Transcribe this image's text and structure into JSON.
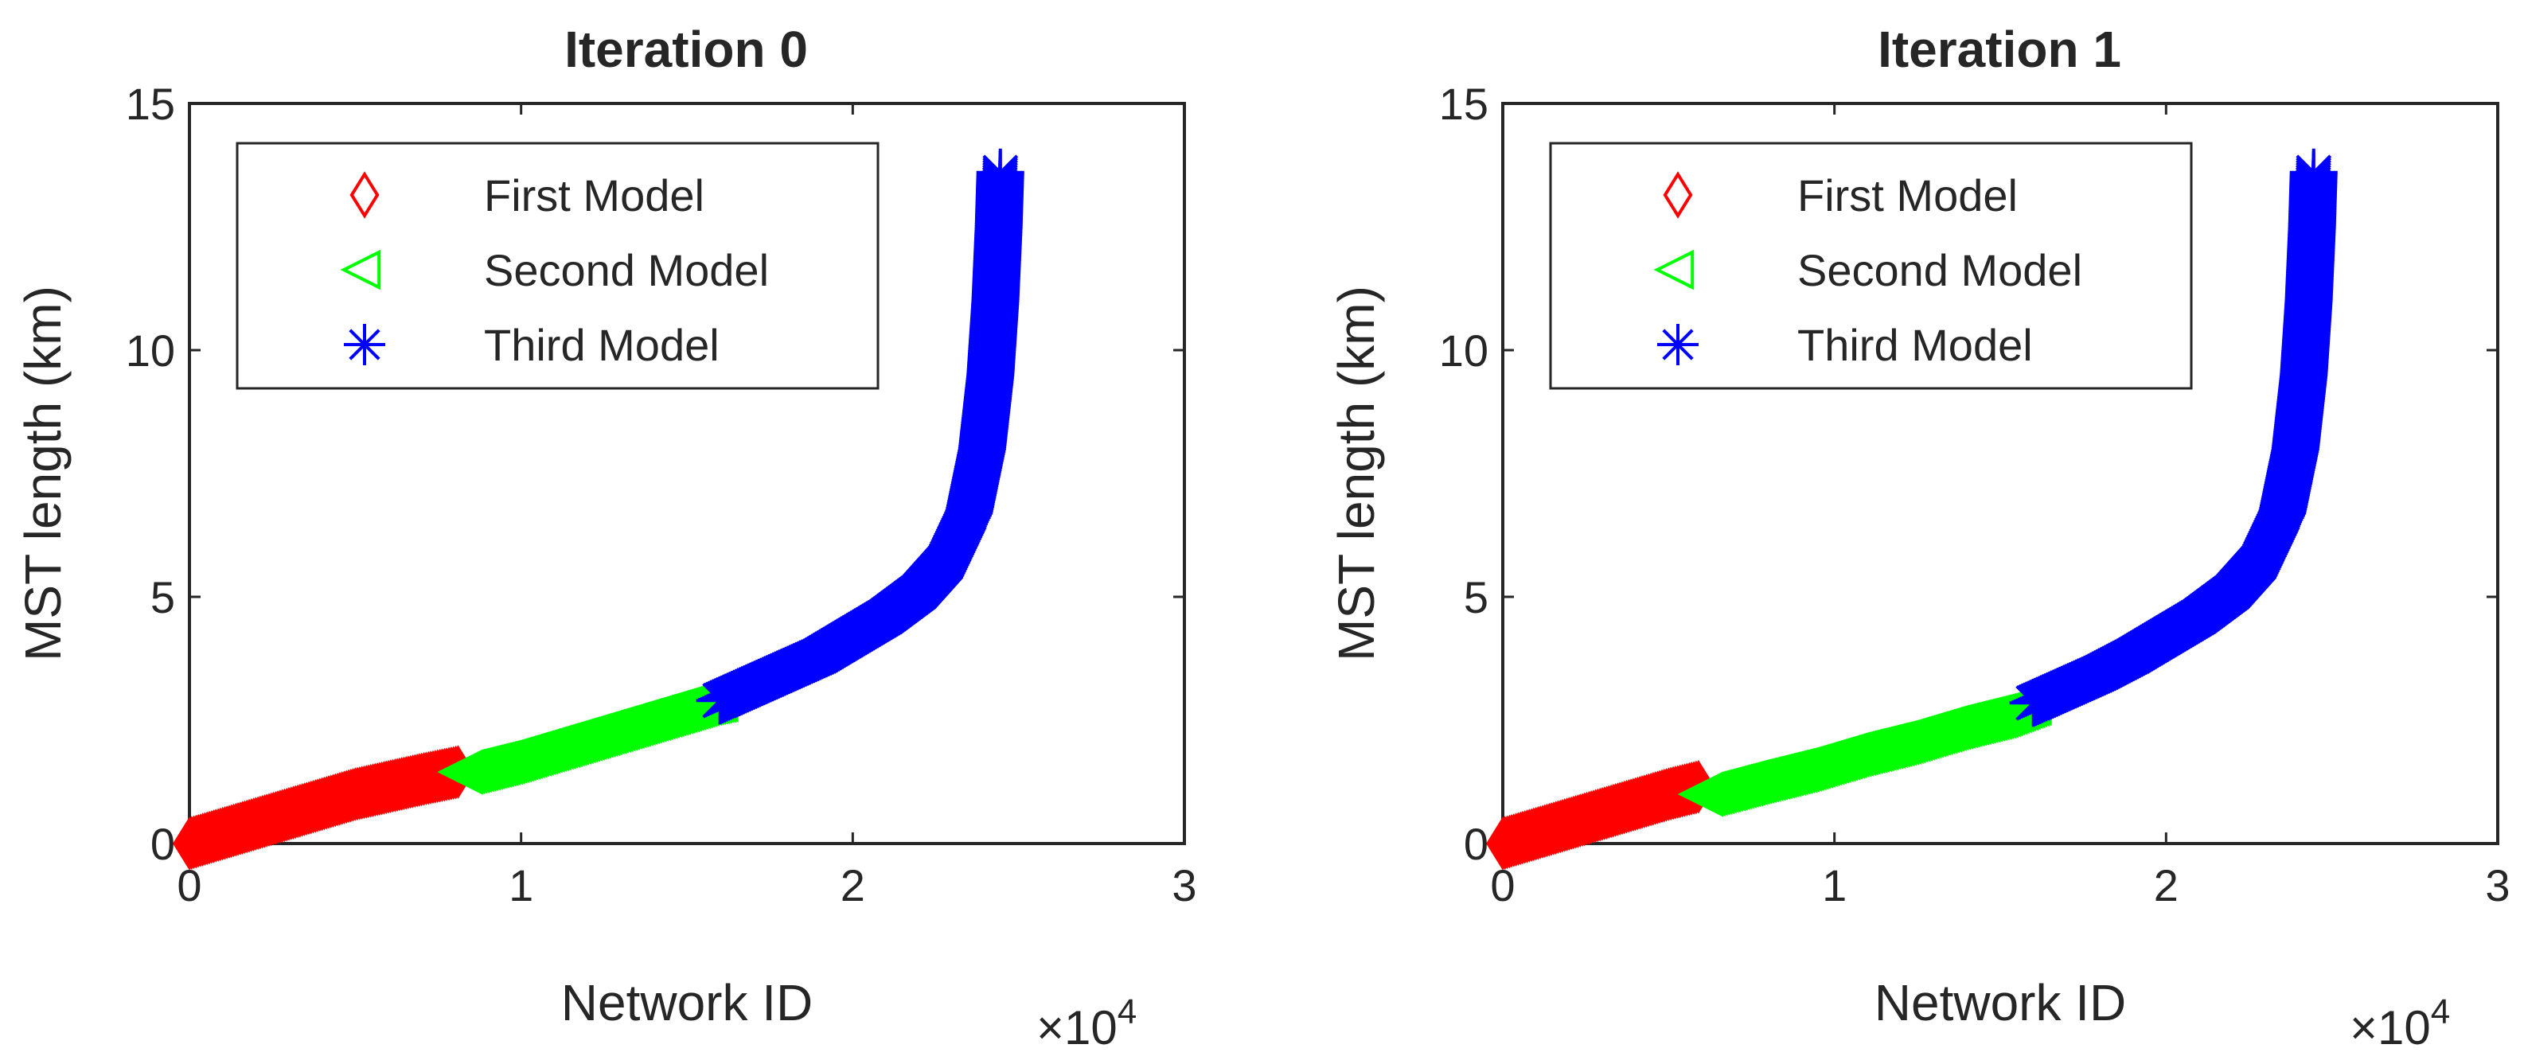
{
  "chart_data": [
    {
      "type": "scatter",
      "title": "Iteration 0",
      "xlabel": "Network ID",
      "ylabel": "MST length (km)",
      "x_multiplier_label": "×10",
      "x_multiplier_exponent": "4",
      "xlim": [
        0,
        30000
      ],
      "ylim": [
        0,
        15
      ],
      "xticks": [
        0,
        1,
        2,
        3
      ],
      "yticks": [
        0,
        5,
        10,
        15
      ],
      "legend": {
        "location": "top-left",
        "entries": [
          "First Model",
          "Second Model",
          "Third Model"
        ]
      },
      "series": [
        {
          "name": "First Model",
          "marker": "diamond",
          "color": "#ff0000",
          "points": [
            [
              0,
              0.0
            ],
            [
              1000,
              0.2
            ],
            [
              2000,
              0.4
            ],
            [
              3000,
              0.6
            ],
            [
              4000,
              0.8
            ],
            [
              5000,
              1.0
            ],
            [
              6000,
              1.15
            ],
            [
              7000,
              1.3
            ],
            [
              8100,
              1.45
            ]
          ]
        },
        {
          "name": "Second Model",
          "marker": "triangle-left",
          "color": "#00ff00",
          "points": [
            [
              8300,
              1.45
            ],
            [
              9500,
              1.65
            ],
            [
              10500,
              1.85
            ],
            [
              11500,
              2.05
            ],
            [
              12500,
              2.25
            ],
            [
              13500,
              2.45
            ],
            [
              14500,
              2.65
            ],
            [
              15500,
              2.85
            ],
            [
              16000,
              2.92
            ]
          ]
        },
        {
          "name": "Third Model",
          "marker": "asterisk",
          "color": "#0000ff",
          "points": [
            [
              16000,
              2.9
            ],
            [
              17000,
              3.2
            ],
            [
              18000,
              3.5
            ],
            [
              19000,
              3.8
            ],
            [
              20000,
              4.2
            ],
            [
              21000,
              4.6
            ],
            [
              22000,
              5.1
            ],
            [
              22800,
              5.7
            ],
            [
              23500,
              6.7
            ],
            [
              23900,
              8.0
            ],
            [
              24150,
              9.5
            ],
            [
              24300,
              11.0
            ],
            [
              24400,
              12.5
            ],
            [
              24450,
              13.6
            ]
          ]
        }
      ]
    },
    {
      "type": "scatter",
      "title": "Iteration 1",
      "xlabel": "Network ID",
      "ylabel": "MST length (km)",
      "x_multiplier_label": "×10",
      "x_multiplier_exponent": "4",
      "xlim": [
        0,
        30000
      ],
      "ylim": [
        0,
        15
      ],
      "xticks": [
        0,
        1,
        2,
        3
      ],
      "yticks": [
        0,
        5,
        10,
        15
      ],
      "legend": {
        "location": "top-left",
        "entries": [
          "First Model",
          "Second Model",
          "Third Model"
        ]
      },
      "series": [
        {
          "name": "First Model",
          "marker": "diamond",
          "color": "#ff0000",
          "points": [
            [
              0,
              0.0
            ],
            [
              1000,
              0.2
            ],
            [
              2000,
              0.4
            ],
            [
              3000,
              0.6
            ],
            [
              4000,
              0.8
            ],
            [
              5000,
              1.0
            ],
            [
              5900,
              1.15
            ]
          ]
        },
        {
          "name": "Second Model",
          "marker": "triangle-left",
          "color": "#00ff00",
          "points": [
            [
              6100,
              1.0
            ],
            [
              7500,
              1.25
            ],
            [
              9000,
              1.5
            ],
            [
              10500,
              1.8
            ],
            [
              12000,
              2.05
            ],
            [
              13500,
              2.35
            ],
            [
              15000,
              2.6
            ],
            [
              16000,
              2.85
            ]
          ]
        },
        {
          "name": "Third Model",
          "marker": "asterisk",
          "color": "#0000ff",
          "points": [
            [
              16000,
              2.85
            ],
            [
              17000,
              3.15
            ],
            [
              18000,
              3.45
            ],
            [
              19000,
              3.8
            ],
            [
              20000,
              4.2
            ],
            [
              21000,
              4.6
            ],
            [
              22000,
              5.1
            ],
            [
              22800,
              5.7
            ],
            [
              23500,
              6.7
            ],
            [
              23900,
              8.0
            ],
            [
              24150,
              9.5
            ],
            [
              24300,
              11.0
            ],
            [
              24400,
              12.5
            ],
            [
              24450,
              13.6
            ]
          ]
        }
      ]
    }
  ]
}
